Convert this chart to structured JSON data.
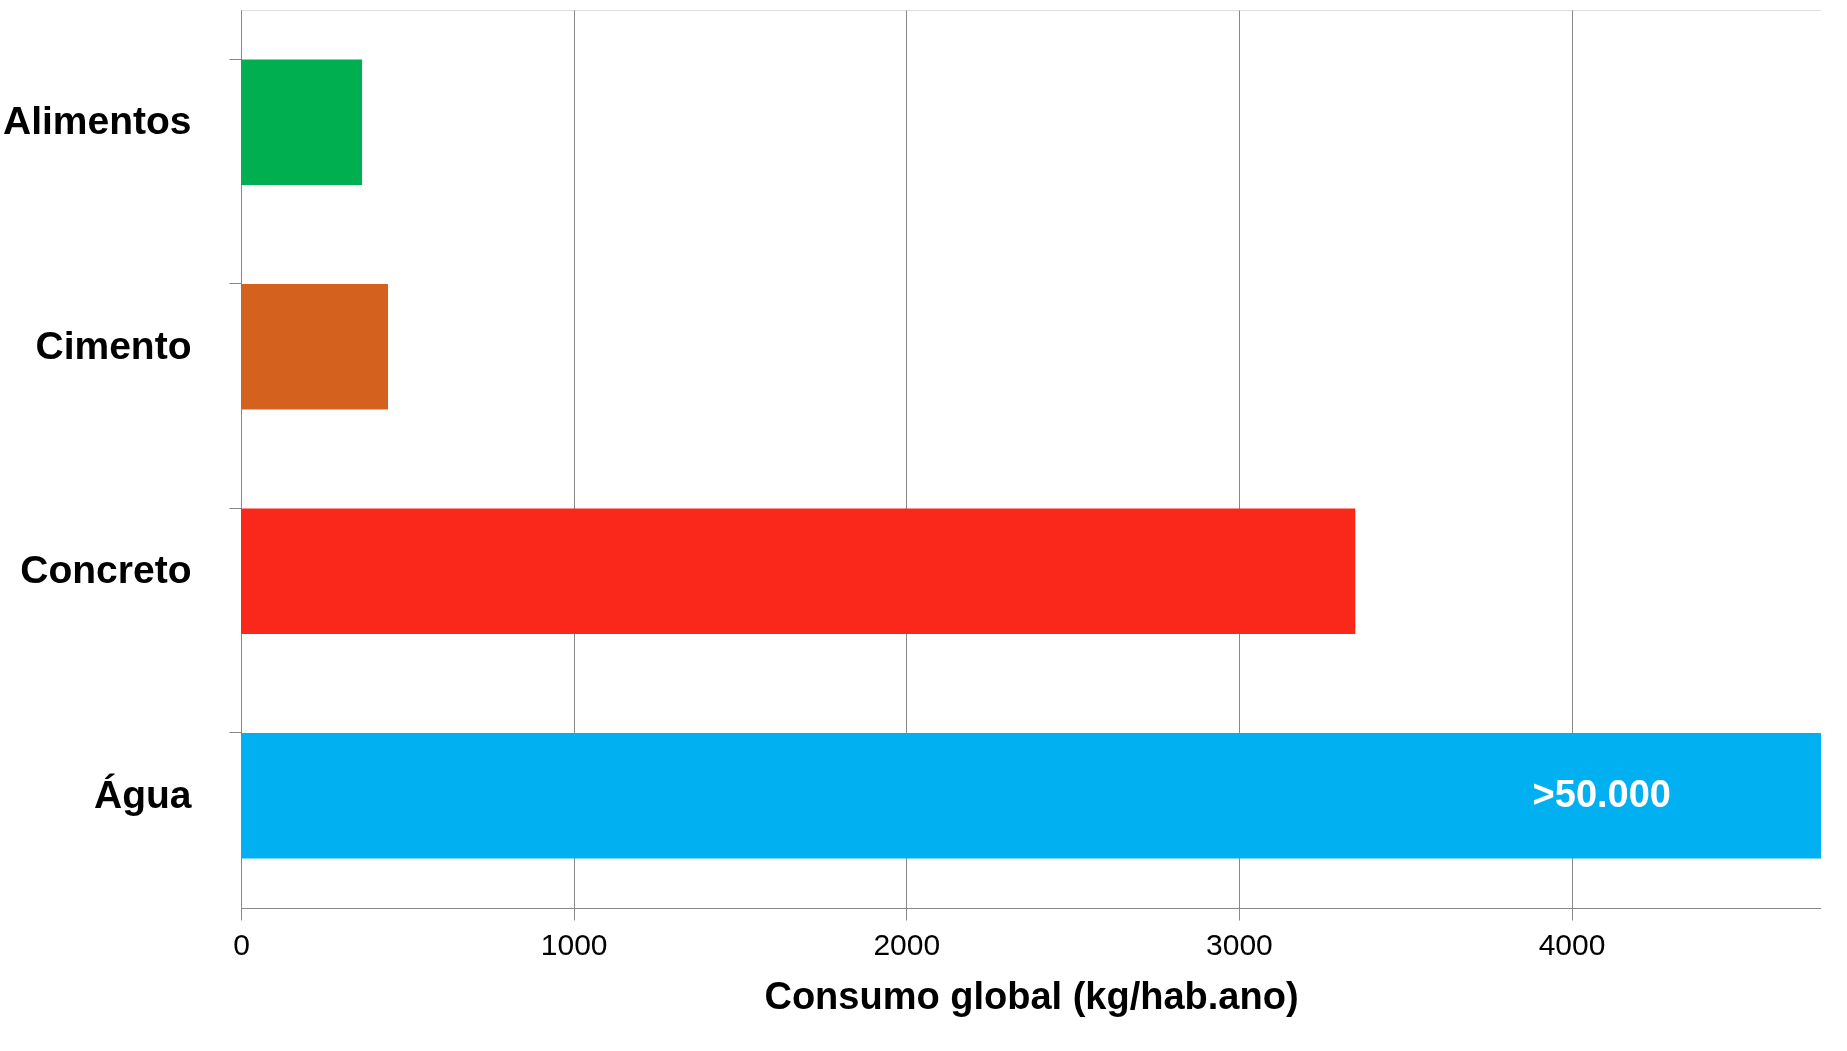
{
  "chart_data": {
    "type": "bar",
    "orientation": "horizontal",
    "xlabel": "Consumo global (kg/hab.ano)",
    "categories": [
      "Alimentos",
      "Cimento",
      "Concreto",
      "Água"
    ],
    "values": [
      364,
      442,
      3350,
      4750
    ],
    "colors": [
      "#00b050",
      "#d4621e",
      "#f9281a",
      "#00b0f0"
    ],
    "value_labels": [
      null,
      null,
      null,
      ">50.000"
    ],
    "xlim": [
      0,
      4750
    ],
    "xticks": [
      0,
      1000,
      2000,
      3000,
      4000
    ],
    "grid": "x"
  }
}
